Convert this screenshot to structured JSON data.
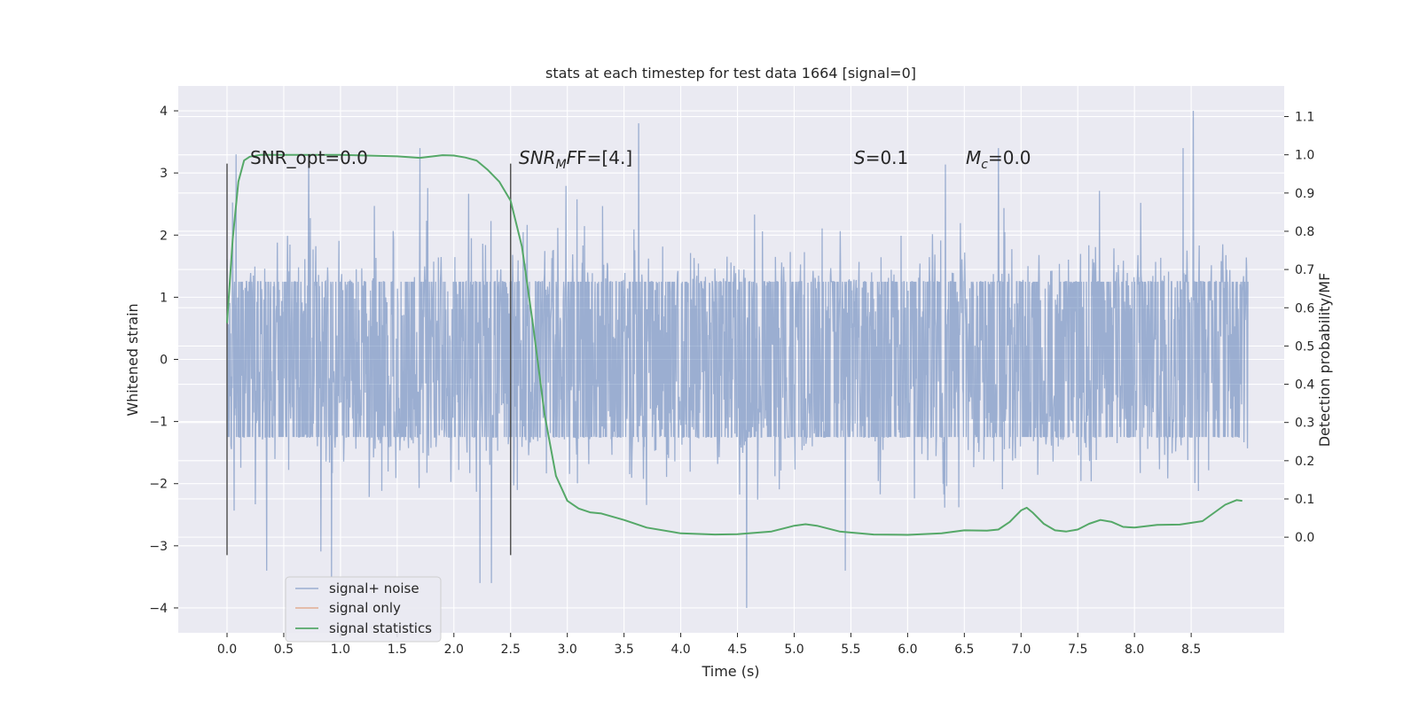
{
  "chart_data": {
    "type": "line",
    "title": "stats at each timestep for test data 1664 [signal=0]",
    "xlabel": "Time (s)",
    "ylabel": "Whitened strain",
    "y2label": "Detection probability/MF",
    "xlim": [
      -0.43,
      9.32
    ],
    "ylim": [
      -4.4,
      4.4
    ],
    "y2lim": [
      -0.25,
      1.18
    ],
    "xticks": [
      0.0,
      0.5,
      1.0,
      1.5,
      2.0,
      2.5,
      3.0,
      3.5,
      4.0,
      4.5,
      5.0,
      5.5,
      6.0,
      6.5,
      7.0,
      7.5,
      8.0,
      8.5
    ],
    "xtick_labels": [
      "0.0",
      "0.5",
      "1.0",
      "1.5",
      "2.0",
      "2.5",
      "3.0",
      "3.5",
      "4.0",
      "4.5",
      "5.0",
      "5.5",
      "6.0",
      "6.5",
      "7.0",
      "7.5",
      "8.0",
      "8.5"
    ],
    "yticks": [
      -4,
      -3,
      -2,
      -1,
      0,
      1,
      2,
      3,
      4
    ],
    "ytick_labels": [
      "−4",
      "−3",
      "−2",
      "−1",
      "0",
      "1",
      "2",
      "3",
      "4"
    ],
    "y2ticks": [
      0.0,
      0.1,
      0.2,
      0.3,
      0.4,
      0.5,
      0.6,
      0.7,
      0.8,
      0.9,
      1.0,
      1.1
    ],
    "y2tick_labels": [
      "0.0",
      "0.1",
      "0.2",
      "0.3",
      "0.4",
      "0.5",
      "0.6",
      "0.7",
      "0.8",
      "0.9",
      "1.0",
      "1.1"
    ],
    "grid": true,
    "legend_position": "lower-left",
    "series": [
      {
        "name": "signal+ noise",
        "color": "#4c72b0",
        "axis": "left",
        "x_range": [
          0.0,
          9.0
        ],
        "typical_amplitude": 1.25,
        "extremes": [
          {
            "x": 0.08,
            "y": 3.3
          },
          {
            "x": 0.35,
            "y": -3.4
          },
          {
            "x": 0.72,
            "y": 3.3
          },
          {
            "x": 0.92,
            "y": -3.5
          },
          {
            "x": 1.7,
            "y": 3.4
          },
          {
            "x": 2.23,
            "y": -3.6
          },
          {
            "x": 2.33,
            "y": -3.6
          },
          {
            "x": 3.63,
            "y": 3.8
          },
          {
            "x": 4.58,
            "y": -4.0
          },
          {
            "x": 5.45,
            "y": -3.4
          },
          {
            "x": 6.8,
            "y": 3.4
          },
          {
            "x": 8.52,
            "y": 4.0
          },
          {
            "x": 8.43,
            "y": 3.4
          }
        ]
      },
      {
        "name": "signal only",
        "color": "#dd8452",
        "axis": "left",
        "x": [],
        "y": []
      },
      {
        "name": "signal statistics",
        "color": "#55a868",
        "axis": "right",
        "x": [
          0.0,
          0.05,
          0.1,
          0.15,
          0.2,
          0.3,
          0.5,
          1.0,
          1.5,
          1.7,
          1.9,
          2.0,
          2.1,
          2.2,
          2.3,
          2.4,
          2.5,
          2.6,
          2.7,
          2.8,
          2.9,
          3.0,
          3.1,
          3.2,
          3.3,
          3.5,
          3.7,
          4.0,
          4.3,
          4.5,
          4.8,
          5.0,
          5.1,
          5.2,
          5.4,
          5.7,
          6.0,
          6.3,
          6.5,
          6.7,
          6.8,
          6.9,
          7.0,
          7.05,
          7.1,
          7.2,
          7.3,
          7.4,
          7.5,
          7.6,
          7.7,
          7.8,
          7.9,
          8.0,
          8.2,
          8.4,
          8.6,
          8.8,
          8.9,
          8.95
        ],
        "y": [
          0.56,
          0.78,
          0.93,
          0.985,
          0.995,
          1.0,
          1.0,
          1.0,
          0.996,
          0.992,
          0.999,
          0.998,
          0.993,
          0.985,
          0.96,
          0.93,
          0.88,
          0.76,
          0.55,
          0.32,
          0.16,
          0.095,
          0.075,
          0.065,
          0.062,
          0.045,
          0.025,
          0.01,
          0.007,
          0.008,
          0.015,
          0.03,
          0.034,
          0.03,
          0.015,
          0.007,
          0.006,
          0.01,
          0.018,
          0.017,
          0.02,
          0.04,
          0.07,
          0.077,
          0.065,
          0.035,
          0.018,
          0.015,
          0.02,
          0.035,
          0.045,
          0.04,
          0.027,
          0.025,
          0.032,
          0.033,
          0.042,
          0.085,
          0.097,
          0.095
        ]
      }
    ],
    "vertical_lines": [
      {
        "x": 0.0,
        "ymin": -3.15,
        "ymax": 3.15,
        "color": "#555555"
      },
      {
        "x": 2.5,
        "ymin": -3.15,
        "ymax": 3.15,
        "color": "#555555"
      }
    ],
    "annotations": [
      {
        "id": "snr-opt",
        "x": 0.2,
        "y": 3.15,
        "text": "SNR_opt=0.0"
      },
      {
        "id": "snr-mf",
        "x": 2.6,
        "y": 3.15,
        "text_main": "SNR",
        "text_sub": "M",
        "text_tail": "F=[4.]"
      },
      {
        "id": "s-stat",
        "x": 5.6,
        "y": 3.15,
        "text_main": "S",
        "text_tail": "=0.1"
      },
      {
        "id": "mc-stat",
        "x": 6.6,
        "y": 3.15,
        "text_main": "M",
        "text_sub": "c",
        "text_tail": "=0.0"
      }
    ]
  }
}
